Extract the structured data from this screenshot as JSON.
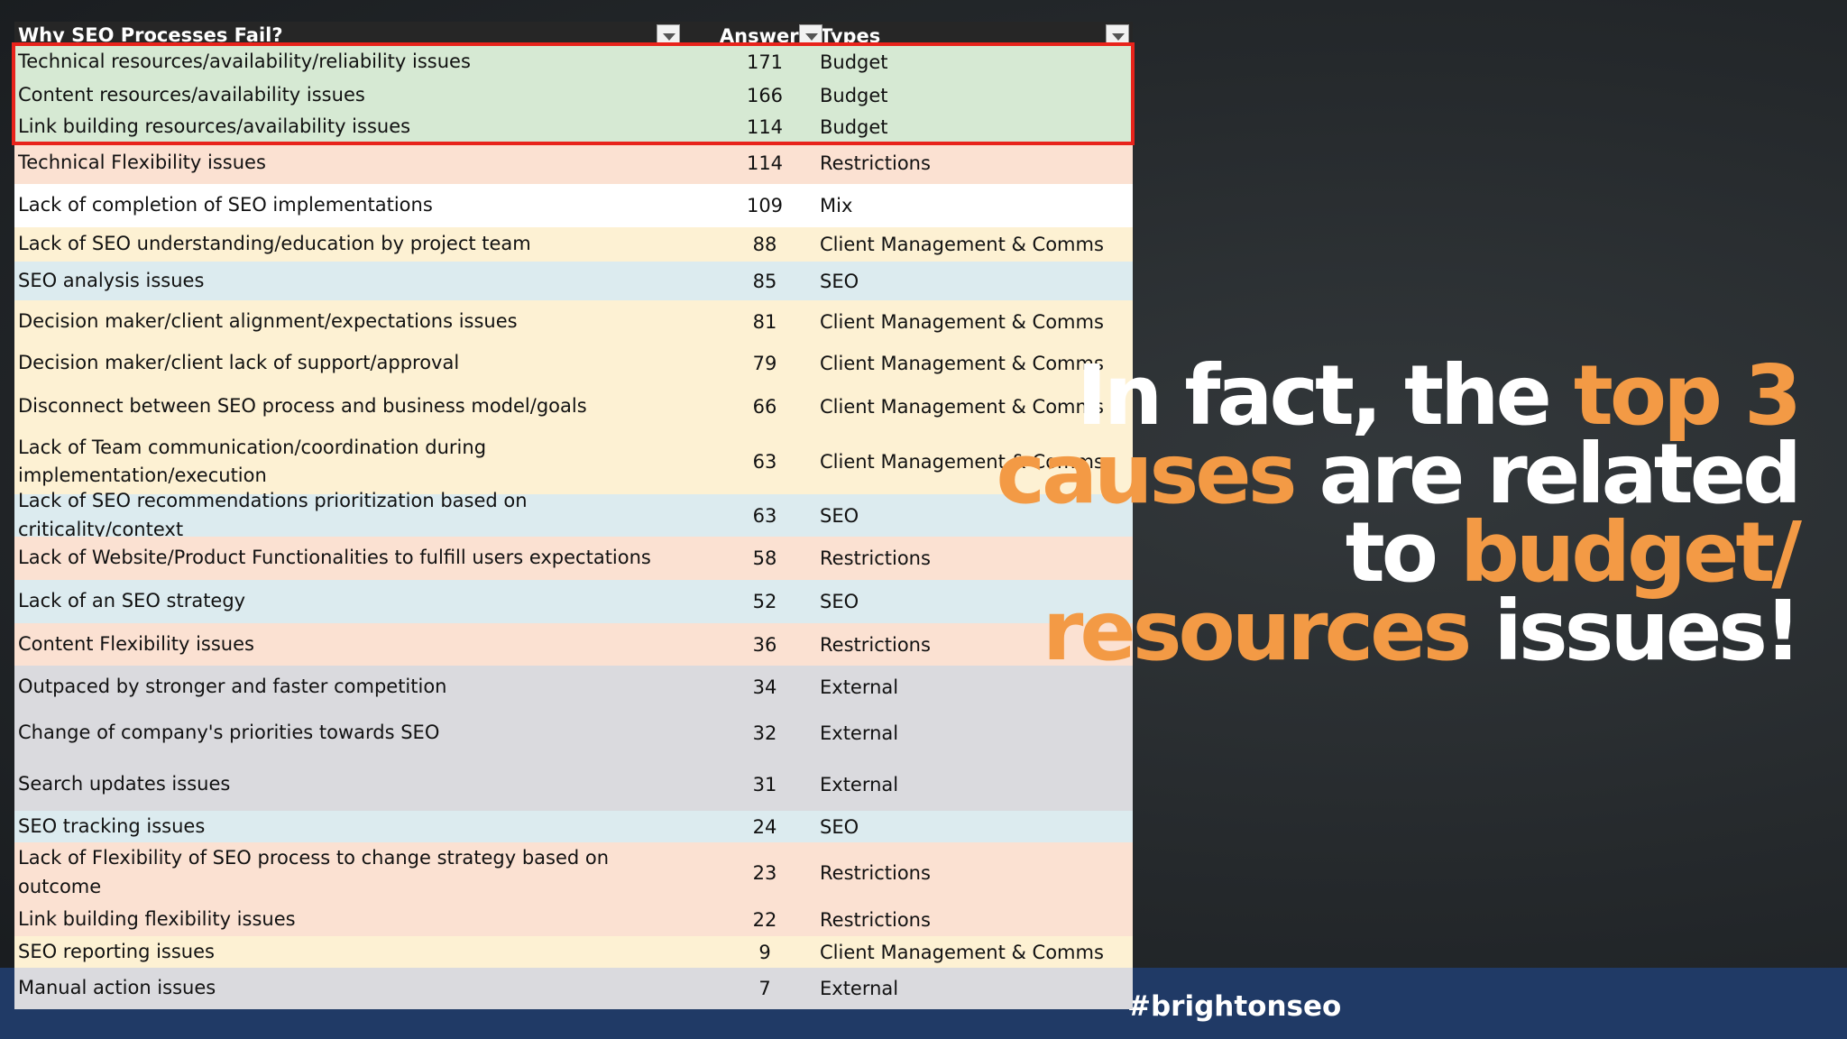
{
  "table": {
    "columns": [
      "Why SEO Processes Fail?",
      "Answers",
      "Types"
    ],
    "highlight_color": "#e8231b",
    "header_color": "#262626",
    "rows": [
      {
        "cause": "Technical resources/availability/reliability issues",
        "answers": 171,
        "type": "Budget",
        "color": "#d6e9d3",
        "highlighted": true
      },
      {
        "cause": "Content resources/availability issues",
        "answers": 166,
        "type": "Budget",
        "color": "#d6e9d3",
        "highlighted": true
      },
      {
        "cause": "Link building resources/availability issues",
        "answers": 114,
        "type": "Budget",
        "color": "#d6e9d3",
        "highlighted": true
      },
      {
        "cause": "Technical Flexibility issues",
        "answers": 114,
        "type": "Restrictions",
        "color": "#fbe1d2",
        "highlighted": false
      },
      {
        "cause": "Lack of completion of SEO implementations",
        "answers": 109,
        "type": "Mix",
        "color": "#ffffff",
        "highlighted": false
      },
      {
        "cause": "Lack of SEO understanding/education by project team",
        "answers": 88,
        "type": "Client Management & Comms",
        "color": "#fdf1d3",
        "highlighted": false
      },
      {
        "cause": "SEO analysis issues",
        "answers": 85,
        "type": "SEO",
        "color": "#dcebef",
        "highlighted": false
      },
      {
        "cause": "Decision maker/client alignment/expectations issues",
        "answers": 81,
        "type": "Client Management & Comms",
        "color": "#fdf1d3",
        "highlighted": false
      },
      {
        "cause": "Decision maker/client lack of support/approval",
        "answers": 79,
        "type": "Client Management & Comms",
        "color": "#fdf1d3",
        "highlighted": false
      },
      {
        "cause": "Disconnect between SEO process and business model/goals",
        "answers": 66,
        "type": "Client Management & Comms",
        "color": "#fdf1d3",
        "highlighted": false
      },
      {
        "cause": "Lack of Team communication/coordination during implementation/execution",
        "answers": 63,
        "type": "Client Management & Comms",
        "color": "#fdf1d3",
        "highlighted": false
      },
      {
        "cause": "Lack of SEO recommendations prioritization based on criticality/context",
        "answers": 63,
        "type": "SEO",
        "color": "#dcebef",
        "highlighted": false
      },
      {
        "cause": "Lack of Website/Product Functionalities to fulfill users expectations",
        "answers": 58,
        "type": "Restrictions",
        "color": "#fbe1d2",
        "highlighted": false
      },
      {
        "cause": "Lack of an SEO strategy",
        "answers": 52,
        "type": "SEO",
        "color": "#dcebef",
        "highlighted": false
      },
      {
        "cause": "Content Flexibility issues",
        "answers": 36,
        "type": "Restrictions",
        "color": "#fbe1d2",
        "highlighted": false
      },
      {
        "cause": "Outpaced by stronger and faster competition",
        "answers": 34,
        "type": "External",
        "color": "#dadade",
        "highlighted": false
      },
      {
        "cause": "Change of company's priorities towards SEO",
        "answers": 32,
        "type": "External",
        "color": "#dadade",
        "highlighted": false
      },
      {
        "cause": "Search updates issues",
        "answers": 31,
        "type": "External",
        "color": "#dadade",
        "highlighted": false
      },
      {
        "cause": "SEO tracking issues",
        "answers": 24,
        "type": "SEO",
        "color": "#dcebef",
        "highlighted": false
      },
      {
        "cause": "Lack of Flexibility of SEO process to change strategy based on outcome",
        "answers": 23,
        "type": "Restrictions",
        "color": "#fbe1d2",
        "highlighted": false
      },
      {
        "cause": "Link building flexibility issues",
        "answers": 22,
        "type": "Restrictions",
        "color": "#fbe1d2",
        "highlighted": false
      },
      {
        "cause": "SEO reporting issues",
        "answers": 9,
        "type": "Client Management & Comms",
        "color": "#fdf1d3",
        "highlighted": false
      },
      {
        "cause": "Manual action issues",
        "answers": 7,
        "type": "External",
        "color": "#dadade",
        "highlighted": false
      }
    ]
  },
  "headline": {
    "accent_color": "#f39a45",
    "lines": [
      [
        {
          "text": "In fact, the ",
          "accent": false
        },
        {
          "text": "top 3",
          "accent": true
        }
      ],
      [
        {
          "text": "causes",
          "accent": true
        },
        {
          "text": " are related",
          "accent": false
        }
      ],
      [
        {
          "text": "to ",
          "accent": false
        },
        {
          "text": "budget/",
          "accent": true
        }
      ],
      [
        {
          "text": "resources",
          "accent": true
        },
        {
          "text": " issues!",
          "accent": false
        }
      ]
    ]
  },
  "footer": {
    "hashtag": "#brightonseo"
  }
}
